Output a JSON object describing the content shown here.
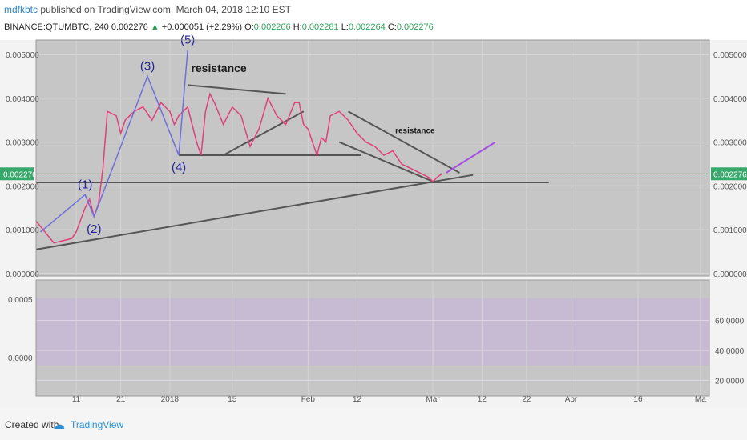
{
  "header": {
    "user": "mdfkbtc",
    "published": " published on TradingView.com, March 04, 2018 12:10 EST",
    "symbol_line": "BINANCE:QTUMBTC, 240",
    "last_price": "0.002276",
    "change": "+0.000051 (+2.29%)",
    "open_label": "O:",
    "open": "0.002266",
    "high_label": "H:",
    "high": "0.002281",
    "low_label": "L:",
    "low": "0.002264",
    "close_label": "C:",
    "close": "0.002276"
  },
  "footer": {
    "created_with": "Created with",
    "brand": "TradingView"
  },
  "chart_data": {
    "type": "line",
    "price_axis": {
      "ticks": [
        "0.005000",
        "0.004000",
        "0.003000",
        "0.002000",
        "0.001000",
        "0.000000"
      ],
      "tick_values": [
        0.005,
        0.004,
        0.003,
        0.002,
        0.001,
        0.0
      ],
      "current_label": "0.002276",
      "current_value": 0.002276
    },
    "x_ticks": [
      "11",
      "21",
      "2018",
      "15",
      "Feb",
      "12",
      "Mar",
      "12",
      "22",
      "Apr",
      "16",
      "Ma"
    ],
    "x_tick_days": [
      11,
      21,
      32,
      46,
      63,
      74,
      91,
      102,
      112,
      122,
      137,
      151
    ],
    "x_domain_days": [
      2,
      153
    ],
    "price_series": {
      "name": "QTUMBTC",
      "color": "#e0407a",
      "days": [
        2,
        4,
        6,
        8,
        10,
        11,
        13,
        14,
        15,
        16,
        17,
        18,
        20,
        21,
        22,
        24,
        26,
        28,
        30,
        31,
        32,
        33,
        34,
        36,
        38,
        39,
        40,
        41,
        42,
        44,
        46,
        48,
        50,
        52,
        54,
        56,
        58,
        60,
        61,
        62,
        63,
        64,
        65,
        66,
        67,
        68,
        70,
        72,
        74,
        76,
        78,
        80,
        82,
        84,
        86,
        88,
        90,
        91,
        92,
        93
      ],
      "values": [
        0.0012,
        0.00095,
        0.0007,
        0.00075,
        0.0008,
        0.00095,
        0.0015,
        0.0017,
        0.0013,
        0.0016,
        0.0024,
        0.0037,
        0.0036,
        0.0032,
        0.0035,
        0.0037,
        0.0038,
        0.0035,
        0.0039,
        0.0038,
        0.0037,
        0.0034,
        0.0036,
        0.0038,
        0.003,
        0.0027,
        0.0037,
        0.0041,
        0.0039,
        0.0034,
        0.0038,
        0.0036,
        0.0029,
        0.0033,
        0.004,
        0.0036,
        0.0034,
        0.0039,
        0.0039,
        0.0034,
        0.0033,
        0.003,
        0.0027,
        0.0031,
        0.003,
        0.0036,
        0.0037,
        0.0035,
        0.0032,
        0.003,
        0.0029,
        0.0027,
        0.0028,
        0.0025,
        0.0024,
        0.0023,
        0.0022,
        0.0021,
        0.0022,
        0.002276
      ]
    },
    "elliott_waves": {
      "labels": [
        "(1)",
        "(2)",
        "(3)",
        "(4)",
        "(5)"
      ],
      "days": [
        13,
        15,
        27,
        34,
        36
      ],
      "values": [
        0.0018,
        0.0013,
        0.0045,
        0.0027,
        0.0051
      ]
    },
    "annotations": {
      "resistance_big": "resistance",
      "resistance_small": "resistance"
    },
    "trendlines": [
      {
        "from": [
          2,
          0.00055
        ],
        "to": [
          100,
          0.00225
        ],
        "color": "#555555"
      },
      {
        "from": [
          2,
          0.00208
        ],
        "to": [
          117,
          0.00208
        ],
        "color": "#555555"
      },
      {
        "from": [
          36,
          0.0043
        ],
        "to": [
          58,
          0.0041
        ],
        "color": "#555555"
      },
      {
        "from": [
          44,
          0.0027
        ],
        "to": [
          62,
          0.0037
        ],
        "color": "#555555"
      },
      {
        "from": [
          34,
          0.0027
        ],
        "to": [
          75,
          0.0027
        ],
        "color": "#555555"
      },
      {
        "from": [
          72,
          0.0037
        ],
        "to": [
          97,
          0.0023
        ],
        "color": "#555555"
      },
      {
        "from": [
          70,
          0.003
        ],
        "to": [
          91,
          0.0021
        ],
        "color": "#555555"
      }
    ],
    "projection": {
      "from": [
        94,
        0.0023
      ],
      "to": [
        105,
        0.003
      ],
      "color": "#a24fe0"
    },
    "indicator": {
      "left_ticks": [
        "0.0005",
        "0.0000"
      ],
      "left_tick_values": [
        0.0005,
        0.0
      ],
      "right_ticks": [
        "60.0000",
        "40.0000",
        "20.0000"
      ],
      "right_tick_values": [
        60,
        40,
        20
      ],
      "band_range": [
        30,
        70
      ]
    }
  }
}
